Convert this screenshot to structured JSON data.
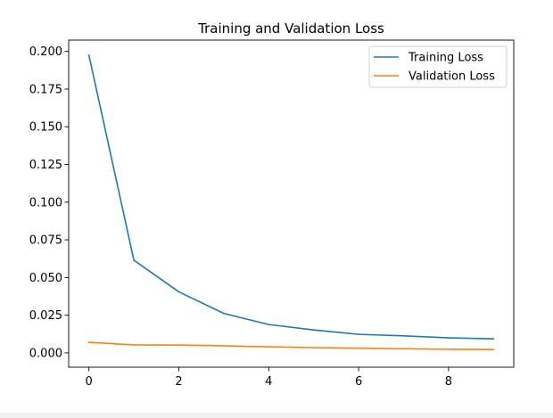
{
  "chart_data": {
    "type": "line",
    "title": "Training and Validation Loss",
    "xlabel": "",
    "ylabel": "",
    "x": [
      0,
      1,
      2,
      3,
      4,
      5,
      6,
      7,
      8,
      9
    ],
    "xlim": [
      -0.45,
      9.45
    ],
    "ylim": [
      -0.0095,
      0.2075
    ],
    "xticks": [
      0,
      2,
      4,
      6,
      8
    ],
    "yticks": [
      0.0,
      0.025,
      0.05,
      0.075,
      0.1,
      0.125,
      0.15,
      0.175,
      0.2
    ],
    "ytick_labels": [
      "0.000",
      "0.025",
      "0.050",
      "0.075",
      "0.100",
      "0.125",
      "0.150",
      "0.175",
      "0.200"
    ],
    "grid": false,
    "legend_position": "top-right",
    "series": [
      {
        "name": "Training Loss",
        "color": "#1f77b4",
        "values": [
          0.1975,
          0.0615,
          0.0405,
          0.0262,
          0.0188,
          0.0152,
          0.0123,
          0.0113,
          0.01,
          0.0093
        ]
      },
      {
        "name": "Validation Loss",
        "color": "#ff7f0e",
        "values": [
          0.007,
          0.0053,
          0.0052,
          0.0047,
          0.004,
          0.0035,
          0.0031,
          0.0027,
          0.0024,
          0.0022
        ]
      }
    ]
  }
}
